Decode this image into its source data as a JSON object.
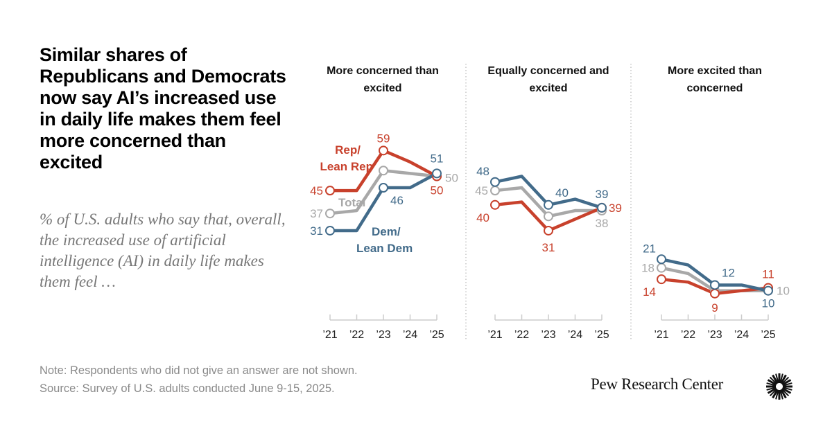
{
  "title": "Similar shares of Republicans and Democrats now say AI’s increased use in daily life makes them feel more concerned than excited",
  "subtitle": "% of U.S. adults who say that, overall, the increased use of artificial intelligence (AI) in daily life makes them feel …",
  "note": "Note: Respondents who did not give an answer are not shown.",
  "source": "Source: Survey of U.S. adults conducted June 9-15, 2025.",
  "logo_text": "Pew Research Center",
  "colors": {
    "rep": "#c8412c",
    "total": "#a8a8a8",
    "dem": "#426b8a"
  },
  "chart_data": [
    {
      "type": "line",
      "title": "More concerned than excited",
      "categories": [
        "’21",
        "’22",
        "’23",
        "’24",
        "’25"
      ],
      "series": [
        {
          "name": "Rep/ Lean Rep",
          "key": "rep",
          "values": [
            45,
            45,
            59,
            55,
            50
          ]
        },
        {
          "name": "Total",
          "key": "total",
          "values": [
            37,
            38,
            52,
            51,
            50
          ]
        },
        {
          "name": "Dem/ Lean Dem",
          "key": "dem",
          "values": [
            31,
            31,
            46,
            46,
            51
          ]
        }
      ],
      "ylim": [
        0,
        60
      ]
    },
    {
      "type": "line",
      "title": "Equally concerned and excited",
      "categories": [
        "’21",
        "’22",
        "’23",
        "’24",
        "’25"
      ],
      "series": [
        {
          "key": "rep",
          "values": [
            40,
            41,
            31,
            35,
            39
          ]
        },
        {
          "key": "total",
          "values": [
            45,
            46,
            36,
            38,
            38
          ]
        },
        {
          "key": "dem",
          "values": [
            48,
            50,
            40,
            42,
            39
          ]
        }
      ],
      "ylim": [
        0,
        60
      ]
    },
    {
      "type": "line",
      "title": "More excited than concerned",
      "categories": [
        "’21",
        "’22",
        "’23",
        "’24",
        "’25"
      ],
      "series": [
        {
          "key": "rep",
          "values": [
            14,
            13,
            9,
            10,
            11
          ]
        },
        {
          "key": "total",
          "values": [
            18,
            16,
            10,
            10,
            10
          ]
        },
        {
          "key": "dem",
          "values": [
            21,
            19,
            12,
            12,
            10
          ]
        }
      ],
      "ylim": [
        0,
        60
      ]
    }
  ],
  "series_labels": {
    "rep_1": "Rep/",
    "rep_2": "Lean Rep",
    "total": "Total",
    "dem_1": "Dem/",
    "dem_2": "Lean Dem"
  }
}
